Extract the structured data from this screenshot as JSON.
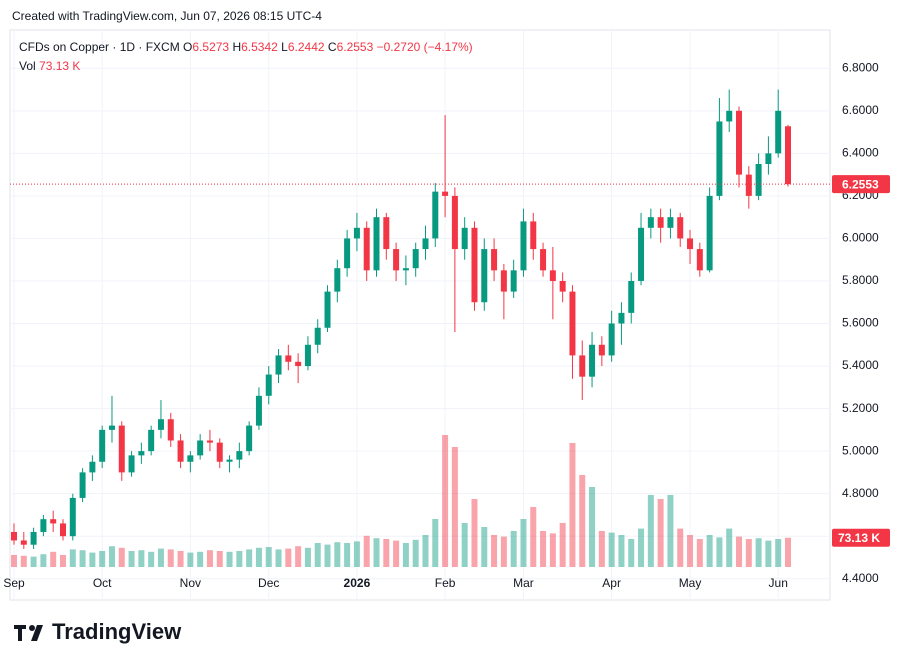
{
  "created": "Created with TradingView.com, Jun 07, 2026 08:15 UTC-4",
  "brand": "TradingView",
  "chart_data": {
    "type": "candlestick",
    "title": "CFDs on Copper · 1D · FXCM",
    "ohlc_keys": [
      "O",
      "H",
      "L",
      "C"
    ],
    "change": "−0.2720 (−4.17%)",
    "volume_name": "Vol",
    "volume_label": "73.13 K",
    "up_color": "#089981",
    "down_color": "#f23645",
    "grid": true,
    "ylim": [
      4.3,
      6.98
    ],
    "yticks": [
      {
        "value": 4.4,
        "label": "4.4000"
      },
      {
        "value": 4.6,
        "label": "4.6000"
      },
      {
        "value": 4.8,
        "label": "4.8000"
      },
      {
        "value": 5.0,
        "label": "5.0000"
      },
      {
        "value": 5.2,
        "label": "5.2000"
      },
      {
        "value": 5.4,
        "label": "5.4000"
      },
      {
        "value": 5.6,
        "label": "5.6000"
      },
      {
        "value": 5.8,
        "label": "5.8000"
      },
      {
        "value": 6.0,
        "label": "6.0000"
      },
      {
        "value": 6.2,
        "label": "6.2000"
      },
      {
        "value": 6.4,
        "label": "6.4000"
      },
      {
        "value": 6.6,
        "label": "6.6000"
      },
      {
        "value": 6.8,
        "label": "6.8000"
      }
    ],
    "categories": [
      "Sep",
      null,
      null,
      null,
      null,
      null,
      null,
      null,
      null,
      "Oct",
      null,
      null,
      null,
      null,
      null,
      null,
      null,
      null,
      "Nov",
      null,
      null,
      null,
      null,
      null,
      null,
      null,
      "Dec",
      null,
      null,
      null,
      null,
      null,
      null,
      null,
      null,
      "2026",
      null,
      null,
      null,
      null,
      null,
      null,
      null,
      null,
      "Feb",
      null,
      null,
      null,
      null,
      null,
      null,
      null,
      "Mar",
      null,
      null,
      null,
      null,
      null,
      null,
      null,
      null,
      "Apr",
      null,
      null,
      null,
      null,
      null,
      null,
      null,
      "May",
      null,
      null,
      null,
      null,
      null,
      null,
      null,
      null,
      "Jun",
      null
    ],
    "ohlc": [
      [
        4.62,
        4.66,
        4.56,
        4.58
      ],
      [
        4.58,
        4.62,
        4.54,
        4.56
      ],
      [
        4.56,
        4.64,
        4.54,
        4.62
      ],
      [
        4.62,
        4.7,
        4.6,
        4.68
      ],
      [
        4.68,
        4.72,
        4.62,
        4.66
      ],
      [
        4.66,
        4.68,
        4.58,
        4.6
      ],
      [
        4.6,
        4.8,
        4.58,
        4.78
      ],
      [
        4.78,
        4.92,
        4.76,
        4.9
      ],
      [
        4.9,
        4.98,
        4.86,
        4.95
      ],
      [
        4.95,
        5.12,
        4.92,
        5.1
      ],
      [
        5.1,
        5.26,
        5.04,
        5.12
      ],
      [
        5.12,
        5.14,
        4.86,
        4.9
      ],
      [
        4.9,
        5.0,
        4.88,
        4.98
      ],
      [
        4.98,
        5.04,
        4.94,
        5.0
      ],
      [
        5.0,
        5.12,
        4.98,
        5.1
      ],
      [
        5.1,
        5.24,
        5.06,
        5.15
      ],
      [
        5.15,
        5.18,
        5.02,
        5.05
      ],
      [
        5.05,
        5.08,
        4.92,
        4.95
      ],
      [
        4.95,
        5.0,
        4.9,
        4.98
      ],
      [
        4.98,
        5.08,
        4.96,
        5.05
      ],
      [
        5.05,
        5.1,
        5.0,
        5.04
      ],
      [
        5.04,
        5.06,
        4.92,
        4.95
      ],
      [
        4.95,
        4.98,
        4.9,
        4.96
      ],
      [
        4.96,
        5.04,
        4.92,
        5.0
      ],
      [
        5.0,
        5.14,
        4.98,
        5.12
      ],
      [
        5.12,
        5.3,
        5.1,
        5.26
      ],
      [
        5.26,
        5.4,
        5.22,
        5.36
      ],
      [
        5.36,
        5.48,
        5.32,
        5.45
      ],
      [
        5.45,
        5.5,
        5.38,
        5.42
      ],
      [
        5.42,
        5.46,
        5.32,
        5.4
      ],
      [
        5.4,
        5.54,
        5.38,
        5.5
      ],
      [
        5.5,
        5.62,
        5.46,
        5.58
      ],
      [
        5.58,
        5.78,
        5.56,
        5.75
      ],
      [
        5.75,
        5.9,
        5.7,
        5.86
      ],
      [
        5.86,
        6.04,
        5.82,
        6.0
      ],
      [
        6.0,
        6.12,
        5.94,
        6.05
      ],
      [
        6.05,
        6.08,
        5.8,
        5.85
      ],
      [
        5.85,
        6.14,
        5.82,
        6.1
      ],
      [
        6.1,
        6.12,
        5.9,
        5.95
      ],
      [
        5.95,
        5.98,
        5.8,
        5.85
      ],
      [
        5.85,
        5.92,
        5.78,
        5.86
      ],
      [
        5.86,
        5.98,
        5.82,
        5.95
      ],
      [
        5.95,
        6.06,
        5.9,
        6.0
      ],
      [
        6.0,
        6.26,
        5.96,
        6.22
      ],
      [
        6.22,
        6.58,
        6.1,
        6.2
      ],
      [
        6.2,
        6.24,
        5.56,
        5.95
      ],
      [
        5.95,
        6.1,
        5.9,
        6.05
      ],
      [
        6.05,
        6.08,
        5.66,
        5.7
      ],
      [
        5.7,
        6.0,
        5.66,
        5.95
      ],
      [
        5.95,
        6.0,
        5.8,
        5.85
      ],
      [
        5.85,
        5.88,
        5.62,
        5.75
      ],
      [
        5.75,
        5.9,
        5.72,
        5.85
      ],
      [
        5.85,
        6.14,
        5.82,
        6.08
      ],
      [
        6.08,
        6.12,
        5.9,
        5.95
      ],
      [
        5.95,
        5.98,
        5.82,
        5.85
      ],
      [
        5.85,
        5.96,
        5.62,
        5.8
      ],
      [
        5.8,
        5.84,
        5.7,
        5.75
      ],
      [
        5.75,
        5.78,
        5.34,
        5.45
      ],
      [
        5.45,
        5.52,
        5.24,
        5.35
      ],
      [
        5.35,
        5.56,
        5.3,
        5.5
      ],
      [
        5.5,
        5.54,
        5.4,
        5.45
      ],
      [
        5.45,
        5.66,
        5.42,
        5.6
      ],
      [
        5.6,
        5.7,
        5.5,
        5.65
      ],
      [
        5.65,
        5.84,
        5.6,
        5.8
      ],
      [
        5.8,
        6.12,
        5.78,
        6.05
      ],
      [
        6.05,
        6.14,
        6.0,
        6.1
      ],
      [
        6.1,
        6.14,
        5.98,
        6.05
      ],
      [
        6.05,
        6.14,
        6.0,
        6.1
      ],
      [
        6.1,
        6.12,
        5.96,
        6.0
      ],
      [
        6.0,
        6.04,
        5.88,
        5.95
      ],
      [
        5.95,
        5.98,
        5.82,
        5.85
      ],
      [
        5.85,
        6.24,
        5.84,
        6.2
      ],
      [
        6.2,
        6.66,
        6.18,
        6.55
      ],
      [
        6.55,
        6.7,
        6.5,
        6.6
      ],
      [
        6.6,
        6.62,
        6.24,
        6.3
      ],
      [
        6.3,
        6.34,
        6.14,
        6.2
      ],
      [
        6.2,
        6.4,
        6.18,
        6.35
      ],
      [
        6.35,
        6.48,
        6.3,
        6.4
      ],
      [
        6.4,
        6.7,
        6.38,
        6.6
      ],
      [
        6.5273,
        6.5342,
        6.2442,
        6.2553
      ]
    ],
    "volume": [
      30,
      28,
      26,
      32,
      38,
      30,
      44,
      42,
      36,
      40,
      52,
      48,
      40,
      42,
      38,
      46,
      44,
      40,
      36,
      38,
      42,
      40,
      38,
      40,
      44,
      48,
      50,
      44,
      46,
      52,
      48,
      60,
      56,
      62,
      60,
      64,
      78,
      72,
      70,
      66,
      60,
      68,
      80,
      120,
      330,
      300,
      110,
      170,
      100,
      80,
      76,
      90,
      120,
      150,
      90,
      84,
      110,
      310,
      230,
      200,
      90,
      86,
      80,
      70,
      96,
      180,
      170,
      180,
      96,
      80,
      70,
      80,
      74,
      96,
      76,
      70,
      72,
      66,
      70,
      73.13
    ]
  }
}
